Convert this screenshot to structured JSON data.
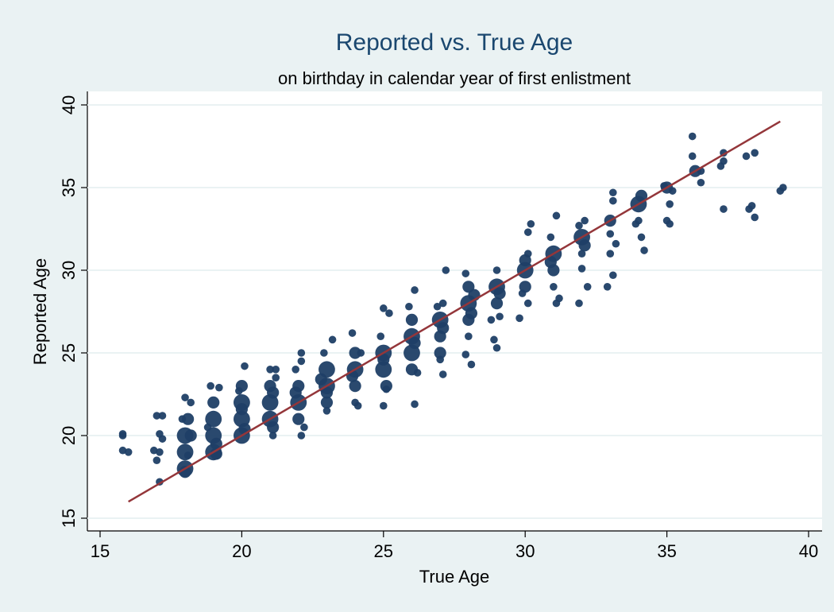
{
  "chart_data": {
    "type": "scatter",
    "title": "Reported vs. True Age",
    "subtitle": "on birthday in calendar year of first enlistment",
    "x_label": "True Age",
    "y_label": "Reported Age",
    "xlim": [
      15,
      40
    ],
    "ylim": [
      15,
      40
    ],
    "xticks": [
      15,
      20,
      25,
      30,
      35,
      40
    ],
    "yticks": [
      15,
      20,
      25,
      30,
      35,
      40
    ],
    "grid": true,
    "series": [
      {
        "type": "scatter",
        "color": "#1f3f66",
        "x": [
          15.8,
          15.8,
          16.0,
          15.8,
          17.0,
          17.2,
          16.9,
          17.1,
          17.0,
          17.2,
          17.1,
          17.1,
          18.0,
          18.0,
          18.0,
          18.1,
          18.0,
          17.9,
          18.2,
          18.1,
          18.2,
          18.0,
          19.0,
          19.0,
          19.0,
          19.0,
          18.9,
          19.2,
          19.1,
          18.8,
          19.1,
          20.0,
          20.0,
          20.0,
          20.0,
          20.1,
          19.9,
          20.1,
          20.0,
          21.0,
          21.0,
          21.0,
          21.1,
          21.2,
          21.0,
          21.1,
          21.2,
          21.1,
          22.0,
          22.0,
          22.0,
          22.1,
          22.1,
          22.1,
          21.9,
          22.2,
          21.9,
          23.0,
          23.0,
          23.0,
          22.9,
          23.0,
          23.2,
          23.0,
          22.8,
          24.0,
          24.0,
          24.0,
          23.9,
          24.0,
          24.2,
          24.1,
          23.9,
          25.0,
          25.0,
          25.1,
          25.0,
          25.0,
          25.2,
          25.1,
          24.9,
          25.0,
          26.0,
          26.0,
          26.0,
          26.0,
          26.1,
          26.1,
          25.9,
          26.2,
          26.1,
          27.0,
          27.0,
          27.0,
          27.1,
          27.2,
          27.1,
          26.9,
          27.0,
          27.1,
          28.0,
          28.0,
          28.0,
          27.9,
          28.1,
          28.0,
          27.9,
          28.2,
          28.1,
          29.0,
          29.0,
          29.0,
          28.9,
          29.0,
          29.1,
          28.8,
          29.1,
          30.0,
          30.0,
          30.1,
          30.2,
          30.1,
          29.8,
          30.1,
          29.9,
          30.0,
          31.0,
          31.0,
          31.0,
          31.1,
          31.1,
          30.9,
          31.2,
          30.9,
          32.0,
          32.0,
          31.9,
          32.1,
          32.2,
          32.0,
          31.9,
          32.1,
          33.0,
          33.1,
          33.0,
          32.9,
          33.1,
          33.2,
          33.0,
          33.1,
          34.0,
          34.0,
          34.1,
          34.2,
          33.9,
          34.1,
          35.0,
          35.1,
          35.0,
          35.1,
          35.2,
          34.9,
          35.9,
          36.0,
          36.2,
          35.9,
          36.2,
          37.0,
          37.0,
          37.0,
          36.9,
          37.8,
          38.1,
          37.9,
          38.1,
          38.0,
          39.1,
          39.0
        ],
        "y": [
          20.1,
          19.1,
          19.0,
          20.0,
          21.2,
          21.2,
          19.1,
          19.0,
          18.5,
          19.8,
          17.2,
          20.1,
          20.0,
          19.0,
          18.0,
          21.0,
          22.3,
          21.0,
          20.0,
          18.8,
          22.0,
          17.8,
          20.0,
          19.0,
          21.0,
          22.0,
          23.0,
          22.9,
          18.9,
          20.5,
          19.5,
          20.0,
          21.0,
          22.0,
          23.0,
          24.2,
          22.7,
          20.4,
          21.6,
          21.0,
          22.0,
          23.0,
          20.0,
          24.0,
          24.0,
          20.5,
          23.5,
          22.6,
          22.0,
          23.0,
          21.0,
          25.0,
          24.5,
          20.0,
          24.0,
          20.5,
          22.6,
          23.0,
          24.0,
          22.0,
          25.0,
          21.5,
          25.8,
          22.6,
          23.4,
          24.0,
          23.0,
          25.0,
          26.2,
          22.0,
          25.0,
          21.8,
          23.6,
          25.0,
          24.0,
          23.0,
          27.7,
          21.8,
          27.4,
          22.8,
          26.0,
          24.6,
          26.0,
          25.0,
          24.0,
          27.0,
          28.8,
          21.9,
          27.8,
          23.8,
          25.6,
          27.0,
          26.0,
          25.0,
          28.0,
          30.0,
          23.7,
          27.8,
          24.6,
          26.5,
          28.0,
          27.0,
          29.0,
          29.8,
          24.3,
          26.0,
          24.9,
          28.5,
          27.4,
          29.0,
          28.0,
          30.0,
          25.8,
          25.3,
          27.2,
          27.0,
          28.6,
          30.0,
          29.0,
          31.0,
          32.8,
          28.0,
          27.1,
          32.3,
          28.6,
          30.6,
          31.0,
          30.0,
          29.0,
          33.3,
          28.0,
          32.0,
          28.3,
          30.5,
          32.0,
          31.0,
          28.0,
          33.0,
          29.0,
          30.1,
          32.7,
          31.5,
          33.0,
          34.7,
          31.0,
          29.0,
          29.7,
          31.6,
          32.2,
          34.2,
          34.0,
          33.0,
          32.0,
          31.2,
          32.8,
          34.5,
          35.0,
          34.0,
          33.0,
          32.8,
          34.8,
          35.1,
          38.1,
          36.0,
          35.3,
          36.9,
          36.0,
          37.1,
          36.6,
          33.7,
          36.3,
          36.9,
          37.1,
          33.7,
          33.2,
          33.9,
          35.0,
          34.8
        ],
        "sizes": [
          1,
          1,
          1,
          1,
          1,
          1,
          1,
          1,
          1,
          1,
          1,
          1,
          3,
          3,
          3,
          2,
          1,
          1,
          2,
          1,
          1,
          2,
          3,
          3,
          3,
          2,
          1,
          1,
          2,
          1,
          2,
          3,
          3,
          3,
          2,
          1,
          1,
          2,
          2,
          3,
          3,
          2,
          1,
          1,
          1,
          2,
          1,
          2,
          3,
          2,
          2,
          1,
          1,
          1,
          1,
          1,
          2,
          3,
          3,
          2,
          1,
          1,
          1,
          2,
          2,
          3,
          2,
          2,
          1,
          1,
          1,
          1,
          2,
          3,
          3,
          2,
          1,
          1,
          1,
          1,
          1,
          2,
          3,
          3,
          2,
          2,
          1,
          1,
          1,
          1,
          2,
          3,
          2,
          2,
          1,
          1,
          1,
          1,
          1,
          2,
          3,
          2,
          2,
          1,
          1,
          1,
          1,
          2,
          2,
          3,
          2,
          1,
          1,
          1,
          1,
          1,
          2,
          3,
          2,
          1,
          1,
          1,
          1,
          1,
          1,
          2,
          3,
          2,
          1,
          1,
          1,
          1,
          1,
          2,
          3,
          1,
          1,
          1,
          1,
          1,
          1,
          2,
          2,
          1,
          1,
          1,
          1,
          1,
          1,
          1,
          3,
          1,
          1,
          1,
          1,
          2,
          2,
          1,
          1,
          1,
          1,
          1,
          1,
          2,
          1,
          1,
          1,
          1,
          1,
          1,
          1,
          1,
          1,
          1,
          1,
          1,
          1,
          1
        ]
      },
      {
        "type": "line",
        "color": "#94363a",
        "x": [
          16,
          39
        ],
        "y": [
          16,
          39
        ]
      }
    ]
  }
}
